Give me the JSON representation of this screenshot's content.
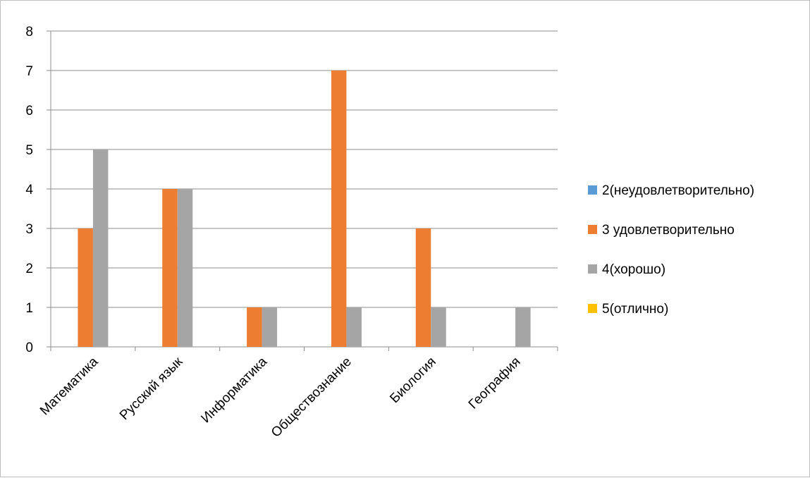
{
  "chart_data": {
    "type": "bar",
    "categories": [
      "Математика",
      "Русский язык",
      "Информатика",
      "Обществознание",
      "Биология",
      "География"
    ],
    "series": [
      {
        "name": "2(неудовлетворительно)",
        "color": "#5B9BD5",
        "values": [
          0,
          0,
          0,
          0,
          0,
          0
        ]
      },
      {
        "name": "3 удовлетворительно",
        "color": "#ED7D31",
        "values": [
          3,
          4,
          1,
          7,
          3,
          0
        ]
      },
      {
        "name": "4(хорошо)",
        "color": "#A5A5A5",
        "values": [
          5,
          4,
          1,
          1,
          1,
          1
        ]
      },
      {
        "name": "5(отлично)",
        "color": "#FFC000",
        "values": [
          0,
          0,
          0,
          0,
          0,
          0
        ]
      }
    ],
    "ylim": [
      0,
      8
    ],
    "yticks": [
      0,
      1,
      2,
      3,
      4,
      5,
      6,
      7,
      8
    ],
    "grid": true,
    "legend": "right",
    "title": "",
    "xlabel": "",
    "ylabel": ""
  }
}
